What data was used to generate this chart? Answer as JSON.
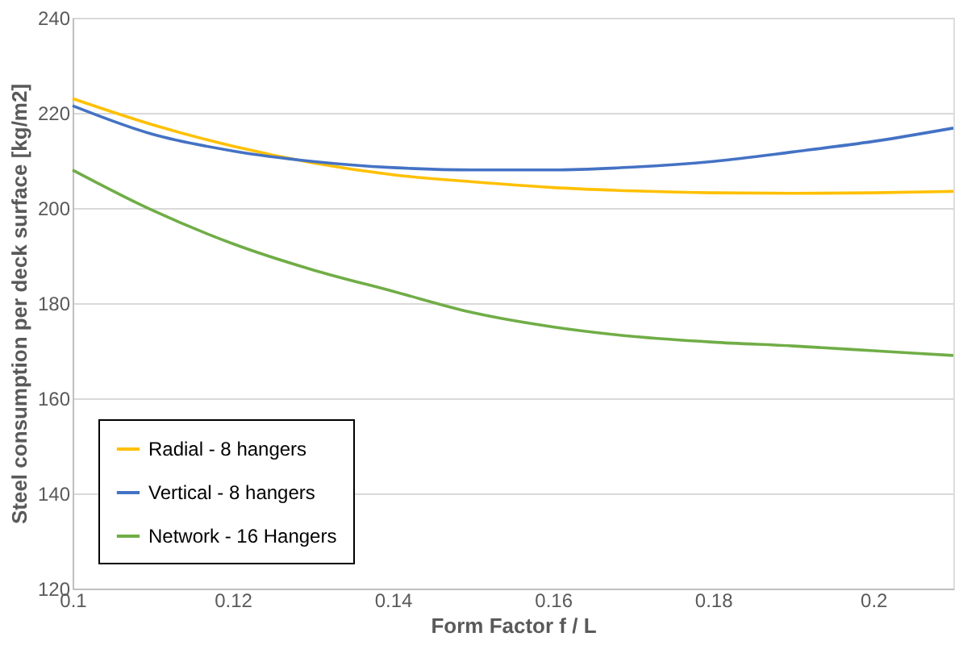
{
  "chart_data": {
    "type": "line",
    "xlabel": "Form Factor f / L",
    "ylabel": "Steel consumption per deck surface [kg/m2]",
    "x": [
      0.1,
      0.11,
      0.12,
      0.13,
      0.14,
      0.15,
      0.16,
      0.17,
      0.18,
      0.19,
      0.2,
      0.21
    ],
    "series": [
      {
        "name": "Radial - 8 hangers",
        "color": "#ffc000",
        "values": [
          223,
          217.5,
          213,
          209.5,
          207,
          205.5,
          204.3,
          203.6,
          203.2,
          203.1,
          203.2,
          203.5
        ]
      },
      {
        "name": "Vertical - 8 hangers",
        "color": "#4472c4",
        "values": [
          221.5,
          215.5,
          212,
          209.8,
          208.5,
          208,
          208,
          208.6,
          209.8,
          211.8,
          214,
          216.8
        ]
      },
      {
        "name": "Network - 16 Hangers",
        "color": "#70ad47",
        "values": [
          208,
          199.5,
          192.5,
          187,
          182.5,
          178,
          175,
          173,
          171.8,
          171,
          170,
          169
        ]
      }
    ],
    "xlim": [
      0.1,
      0.21
    ],
    "xticks": [
      0.1,
      0.12,
      0.14,
      0.16,
      0.18,
      0.2
    ],
    "ylim": [
      120,
      240
    ],
    "yticks": [
      120,
      140,
      160,
      180,
      200,
      220,
      240
    ],
    "grid": "y",
    "legend": "bottom left",
    "marker": "none",
    "line_style": "solid"
  }
}
